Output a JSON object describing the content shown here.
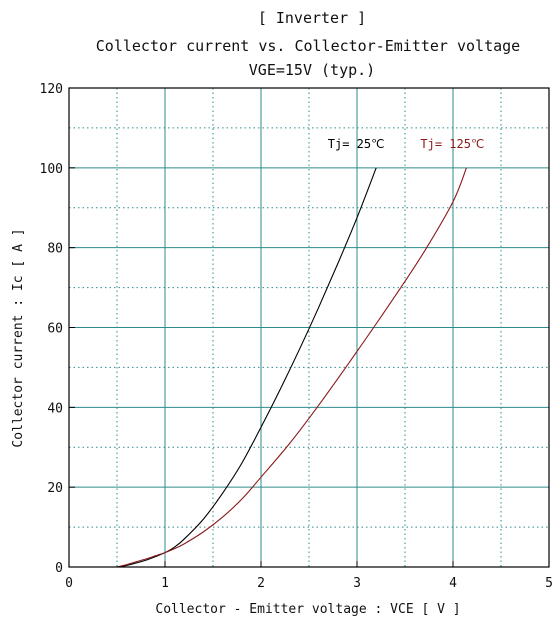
{
  "chart_data": {
    "type": "line",
    "title_lines": [
      "[ Inverter ]",
      "Collector current  vs.  Collector-Emitter voltage",
      "VGE=15V  (typ.)"
    ],
    "xlabel": "Collector - Emitter voltage  :  VCE  [ V ]",
    "ylabel": "Collector current  :  Ic  [ A ]",
    "xlim": [
      0,
      5
    ],
    "ylim": [
      0,
      120
    ],
    "x_ticks": [
      0,
      1,
      2,
      3,
      4,
      5
    ],
    "y_ticks": [
      0,
      20,
      40,
      60,
      80,
      100,
      120
    ],
    "x_minor_gridlines": [
      0.5,
      1.5,
      2.5,
      3.5,
      4.5
    ],
    "y_minor_gridlines": [
      10,
      30,
      50,
      70,
      90,
      110
    ],
    "grid": true,
    "series": [
      {
        "name": "Tj= 25℃",
        "color": "#000000",
        "x": [
          0.5,
          0.6,
          0.7,
          0.8,
          0.9,
          1.0,
          1.1,
          1.2,
          1.4,
          1.6,
          1.8,
          2.0,
          2.2,
          2.4,
          2.6,
          2.8,
          3.0,
          3.2
        ],
        "y": [
          0,
          0.4,
          1.0,
          1.7,
          2.6,
          3.6,
          5.0,
          7.0,
          12.0,
          18.5,
          26.0,
          35.0,
          44.5,
          54.5,
          65.0,
          76.0,
          87.5,
          100
        ]
      },
      {
        "name": "Tj= 125℃",
        "color": "#8b1a1a",
        "x": [
          0.5,
          0.6,
          0.7,
          0.8,
          0.9,
          1.0,
          1.1,
          1.2,
          1.4,
          1.6,
          1.8,
          2.0,
          2.3,
          2.6,
          3.0,
          3.4,
          3.7,
          4.0,
          4.14
        ],
        "y": [
          0,
          0.6,
          1.3,
          2.0,
          2.8,
          3.6,
          4.6,
          5.8,
          8.8,
          12.5,
          17.0,
          22.5,
          31.0,
          40.5,
          54.0,
          68.0,
          79.0,
          91.5,
          100
        ]
      }
    ]
  }
}
